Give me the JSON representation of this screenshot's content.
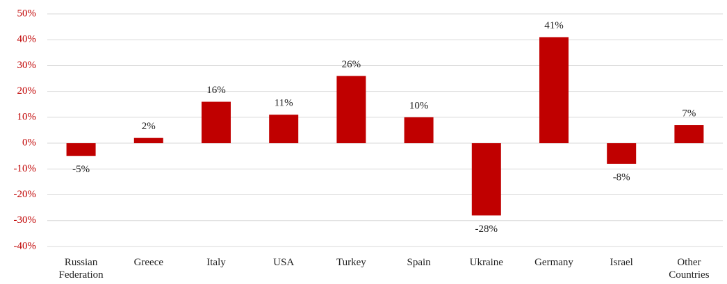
{
  "chart_data": {
    "type": "bar",
    "categories": [
      "Russian Federation",
      "Greece",
      "Italy",
      "USA",
      "Turkey",
      "Spain",
      "Ukraine",
      "Germany",
      "Israel",
      "Other Countries"
    ],
    "values": [
      -5,
      2,
      16,
      11,
      26,
      10,
      -28,
      41,
      -8,
      7
    ],
    "value_labels": [
      "-5%",
      "2%",
      "16%",
      "11%",
      "26%",
      "10%",
      "-28%",
      "41%",
      "-8%",
      "7%"
    ],
    "color": "#c00000",
    "ylim": [
      -40,
      50
    ],
    "yticks": [
      {
        "value": -40,
        "label": "-40%"
      },
      {
        "value": -30,
        "label": "-30%"
      },
      {
        "value": -20,
        "label": "-20%"
      },
      {
        "value": -10,
        "label": "-10%"
      },
      {
        "value": 0,
        "label": "0%"
      },
      {
        "value": 10,
        "label": "10%"
      },
      {
        "value": 20,
        "label": "20%"
      },
      {
        "value": 30,
        "label": "30%"
      },
      {
        "value": 40,
        "label": "40%"
      },
      {
        "value": 50,
        "label": "50%"
      }
    ],
    "grid": true
  }
}
